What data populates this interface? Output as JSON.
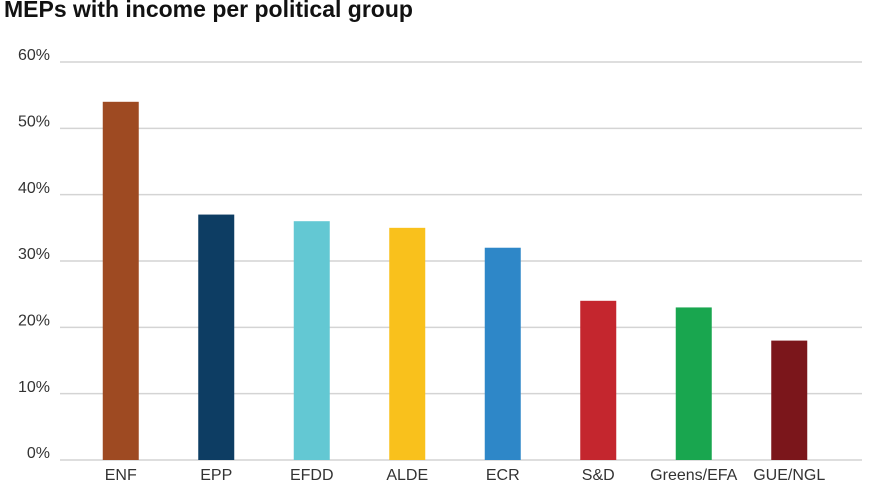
{
  "chart_data": {
    "type": "bar",
    "title": "MEPs with income per political group",
    "categories": [
      "ENF",
      "EPP",
      "EFDD",
      "ALDE",
      "ECR",
      "S&D",
      "Greens/EFA",
      "GUE/NGL"
    ],
    "values": [
      54,
      37,
      36,
      35,
      32,
      24,
      23,
      18
    ],
    "colors": [
      "#9e4a22",
      "#0d3d63",
      "#63c8d3",
      "#f9c11c",
      "#2e87c8",
      "#c4262e",
      "#19a64f",
      "#7b161b"
    ],
    "ylim": [
      0,
      60
    ],
    "yticks": [
      {
        "value": 0,
        "label": "0%"
      },
      {
        "value": 10,
        "label": "10%"
      },
      {
        "value": 20,
        "label": "20%"
      },
      {
        "value": 30,
        "label": "30%"
      },
      {
        "value": 40,
        "label": "40%"
      },
      {
        "value": 50,
        "label": "50%"
      },
      {
        "value": 60,
        "label": "60%"
      }
    ],
    "grid": true
  }
}
